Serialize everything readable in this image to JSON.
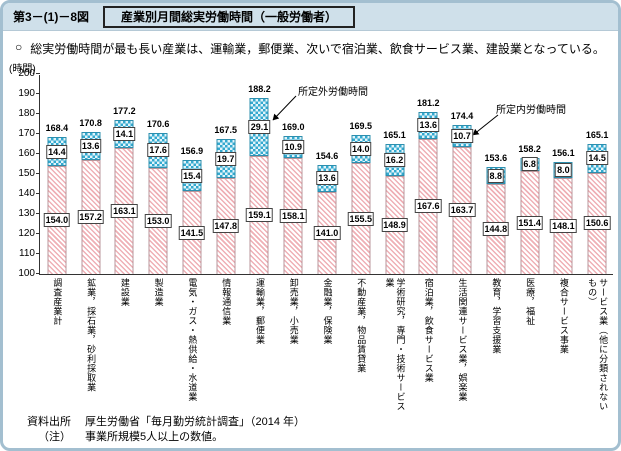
{
  "header": {
    "figure_number": "第3－(1)－8図",
    "title": "産業別月間総実労働時間（一般労働者）"
  },
  "lead": {
    "bullet": "○",
    "text": "総実労働時間が最も長い産業は、運輸業，郵便業、次いで宿泊業、飲食サービス業、建設業となっている。"
  },
  "chart_data": {
    "type": "bar",
    "stacked": true,
    "unit_label": "(時間)",
    "ylim": [
      100,
      200
    ],
    "ytick_interval": 10,
    "grid": false,
    "categories": [
      "調査産業計",
      "鉱業，採石業，砂利採取業",
      "建設業",
      "製造業",
      "電気・ガス・熱供給・水道業",
      "情報通信業",
      "運輸業，郵便業",
      "卸売業，小売業",
      "金融業，保険業",
      "不動産業，物品賃貸業",
      "学術研究，専門・技術サービス業",
      "宿泊業，飲食サービス業",
      "生活関連サービス業，娯楽業",
      "教育，学習支援業",
      "医療，福祉",
      "複合サービス事業",
      "サービス業（他に分類されないもの）"
    ],
    "series": [
      {
        "name": "所定内労働時間",
        "values": [
          154.0,
          157.2,
          163.1,
          153.0,
          141.5,
          147.8,
          159.1,
          158.1,
          141.0,
          155.5,
          148.9,
          167.6,
          163.7,
          144.8,
          151.4,
          148.1,
          150.6
        ]
      },
      {
        "name": "所定外労働時間",
        "values": [
          14.4,
          13.6,
          14.1,
          17.6,
          15.4,
          19.7,
          29.1,
          10.9,
          13.6,
          14.0,
          16.2,
          13.6,
          10.7,
          8.8,
          6.8,
          8.0,
          14.5
        ]
      }
    ],
    "totals": [
      168.4,
      170.8,
      177.2,
      170.6,
      156.9,
      167.5,
      188.2,
      169.0,
      154.6,
      169.5,
      165.1,
      181.2,
      174.4,
      153.6,
      158.2,
      156.1,
      165.1
    ],
    "annotations": [
      {
        "text": "所定外労働時間",
        "target_category": "運輸業，郵便業"
      },
      {
        "text": "所定内労働時間",
        "target_category": "生活関連サービス業，娯楽業"
      }
    ],
    "colors": {
      "scheduled_fill": "#efb0b6",
      "overtime_fill": "#33a9cf",
      "header_bg": "#cfe0ea",
      "frame_border": "#a3bfd0"
    }
  },
  "footer": {
    "source_label": "資料出所",
    "source_text": "厚生労働省「毎月勤労統計調査」（2014 年）",
    "note_label": "（注）",
    "note_text": "事業所規模5人以上の数値。"
  }
}
